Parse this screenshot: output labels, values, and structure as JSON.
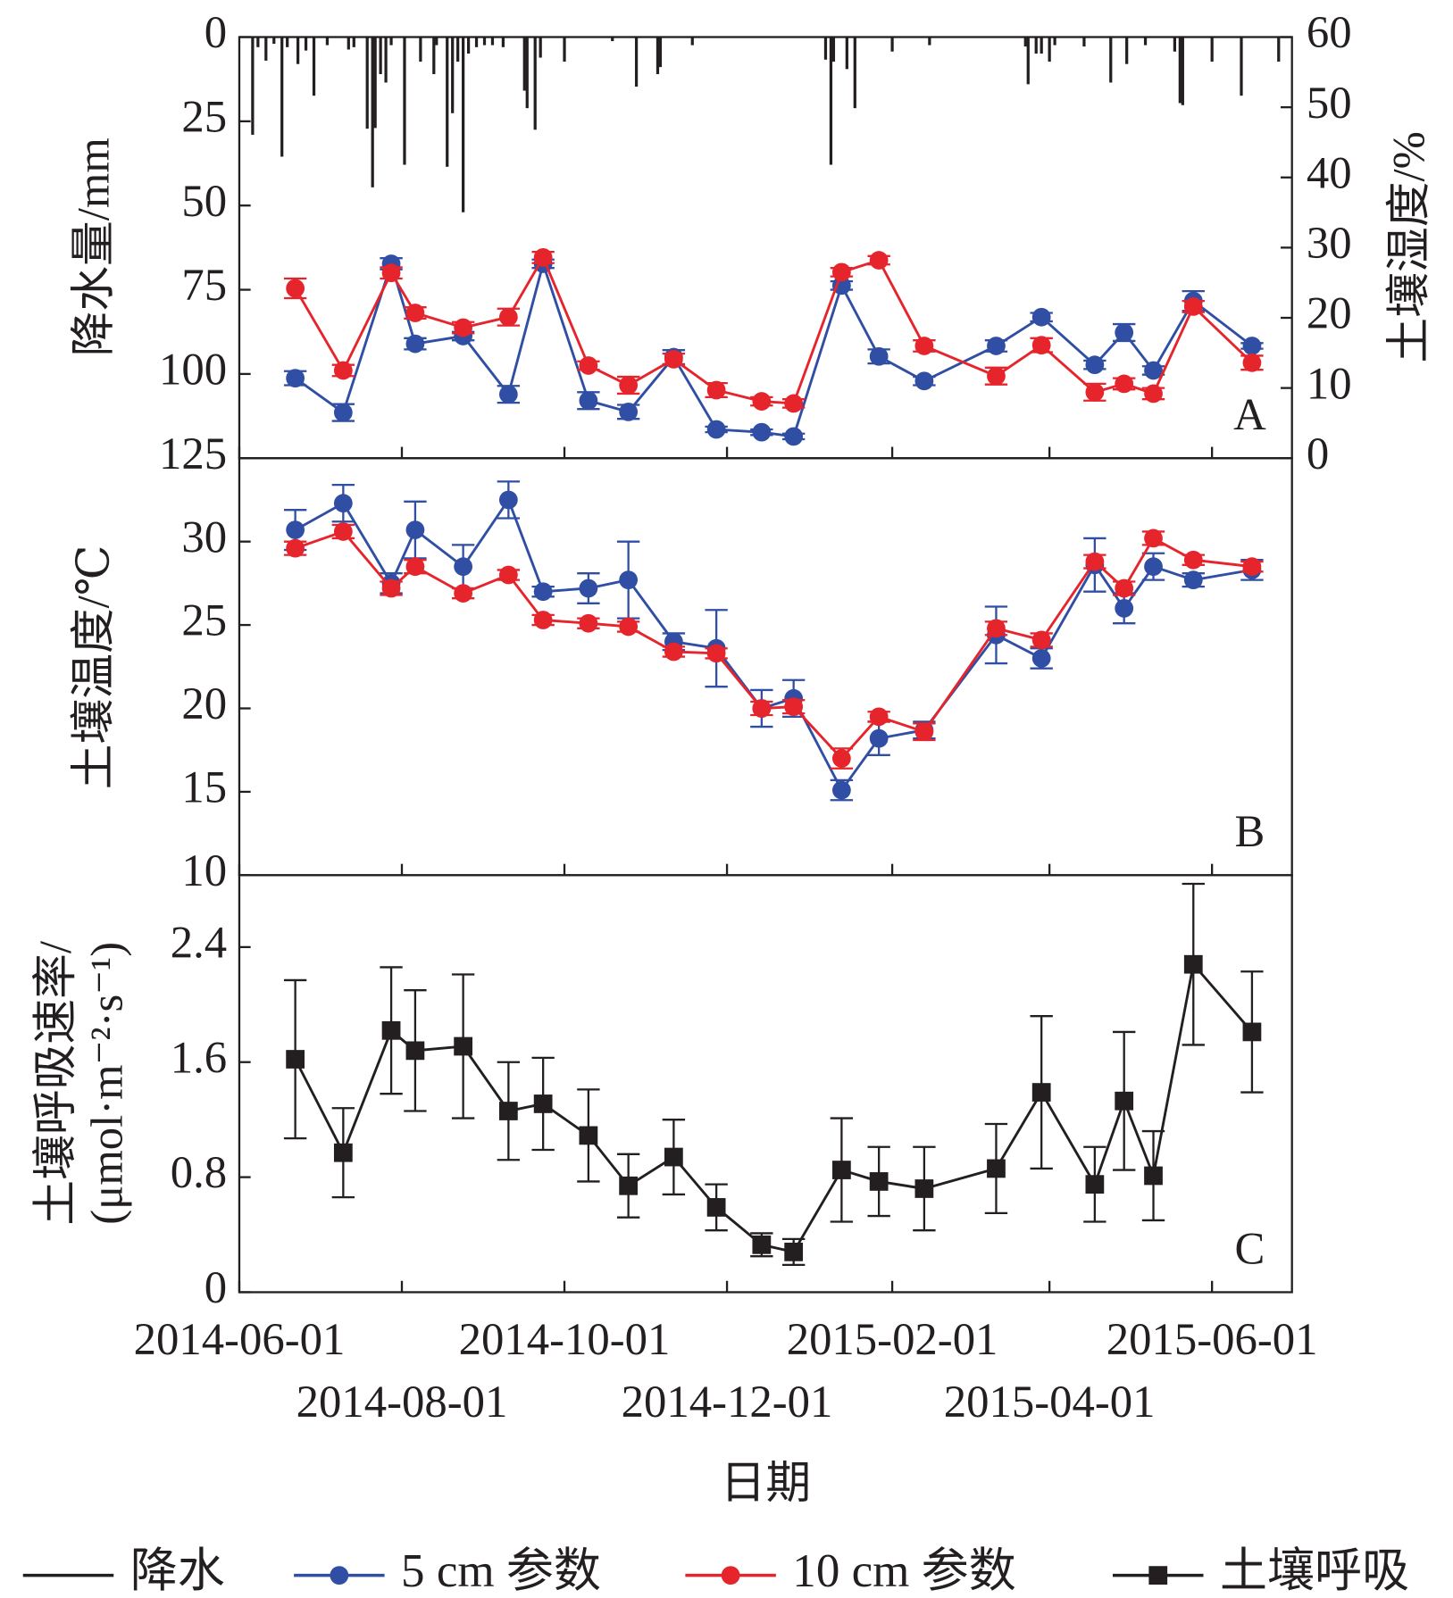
{
  "chart_data": [
    {
      "type": "combo",
      "panel_label": "A",
      "ylabel": "降水量/mm",
      "y2label": "土壤湿度/%",
      "ylim": [
        0,
        125
      ],
      "y_inverted": true,
      "yticks": [
        0,
        25,
        50,
        75,
        100,
        125
      ],
      "y2lim": [
        0,
        60
      ],
      "y2ticks": [
        0,
        10,
        20,
        30,
        40,
        50,
        60
      ],
      "xlim": [
        "2014-06-01",
        "2015-07-01"
      ],
      "x": [
        "2014-06-22",
        "2014-07-10",
        "2014-07-28",
        "2014-08-06",
        "2014-08-24",
        "2014-09-10",
        "2014-09-23",
        "2014-10-10",
        "2014-10-25",
        "2014-11-11",
        "2014-11-27",
        "2014-12-14",
        "2014-12-26",
        "2015-01-13",
        "2015-01-27",
        "2015-02-13",
        "2015-03-12",
        "2015-03-29",
        "2015-04-18",
        "2015-04-29",
        "2015-05-10",
        "2015-05-25",
        "2015-06-16"
      ],
      "series": [
        {
          "name": "降水",
          "type": "bar",
          "color": "#231f20",
          "x": [
            "2014-06-06",
            "2014-06-08",
            "2014-06-11",
            "2014-06-14",
            "2014-06-17",
            "2014-06-19",
            "2014-06-23",
            "2014-06-26",
            "2014-06-29",
            "2014-07-04",
            "2014-07-12",
            "2014-07-14",
            "2014-07-19",
            "2014-07-21",
            "2014-07-22",
            "2014-07-24",
            "2014-07-26",
            "2014-07-28",
            "2014-08-02",
            "2014-08-08",
            "2014-08-13",
            "2014-08-14",
            "2014-08-18",
            "2014-08-20",
            "2014-08-22",
            "2014-08-24",
            "2014-08-26",
            "2014-08-29",
            "2014-09-01",
            "2014-09-04",
            "2014-09-08",
            "2014-09-16",
            "2014-09-17",
            "2014-09-20",
            "2014-09-22",
            "2014-10-01",
            "2014-10-19",
            "2014-10-28",
            "2014-11-05",
            "2014-11-06",
            "2014-11-18",
            "2015-01-07",
            "2015-01-09",
            "2015-01-10",
            "2015-01-15",
            "2015-01-18",
            "2015-02-01",
            "2015-02-15",
            "2015-03-23",
            "2015-03-24",
            "2015-03-27",
            "2015-03-29",
            "2015-04-01",
            "2015-04-03",
            "2015-04-14",
            "2015-04-24",
            "2015-04-30",
            "2015-05-07",
            "2015-05-18",
            "2015-05-20",
            "2015-05-21",
            "2015-06-01",
            "2015-06-12",
            "2015-06-26"
          ],
          "values": [
            29,
            3,
            7,
            2,
            35.5,
            3,
            8,
            4,
            17.4,
            2.4,
            3.7,
            3,
            27.2,
            44.6,
            27,
            11,
            13.5,
            2.4,
            37.9,
            7.3,
            11,
            2.4,
            38.5,
            22.6,
            7.3,
            52,
            4.9,
            3,
            2.4,
            2.4,
            3,
            15.9,
            21.1,
            27.5,
            6.1,
            7.3,
            1.2,
            14.7,
            11,
            8.9,
            2.4,
            6.7,
            37.9,
            7.3,
            9.5,
            21.1,
            4.3,
            2.4,
            2.8,
            14,
            4.9,
            4.9,
            7.3,
            2.4,
            2.8,
            13.5,
            8,
            2.4,
            4.3,
            19.6,
            20.2,
            7.3,
            17.4,
            7.3
          ]
        },
        {
          "name": "5 cm 参数",
          "type": "line",
          "axis": "y2",
          "color": "#2f4ea4",
          "marker": "circle",
          "values": [
            11.4,
            6.5,
            27.7,
            16.3,
            17.4,
            9.1,
            27.7,
            8.2,
            6.6,
            14.4,
            4.1,
            3.7,
            3.1,
            24.6,
            14.5,
            11.0,
            16.0,
            20.1,
            13.3,
            17.9,
            12.5,
            22.4,
            16.0
          ],
          "errors": [
            1.0,
            1.2,
            0.8,
            0.8,
            0.6,
            1.2,
            0.6,
            1.2,
            1.0,
            1.0,
            0.4,
            0.4,
            0.4,
            0.6,
            1.0,
            0.6,
            0.8,
            0.6,
            0.6,
            1.2,
            0.6,
            1.4,
            0.4
          ]
        },
        {
          "name": "10 cm 参数",
          "type": "line",
          "axis": "y2",
          "color": "#e6242c",
          "marker": "circle",
          "values": [
            24.2,
            12.5,
            26.4,
            20.7,
            18.6,
            20.1,
            28.6,
            13.2,
            10.4,
            14.1,
            9.7,
            8.1,
            7.8,
            26.5,
            28.2,
            16.0,
            11.7,
            16.1,
            9.4,
            10.6,
            9.2,
            21.6,
            13.6
          ],
          "errors": [
            1.4,
            0.8,
            0.8,
            0.8,
            0.8,
            1.2,
            0.8,
            0.6,
            1.2,
            0.8,
            1.0,
            0.6,
            0.6,
            0.6,
            0.6,
            0.8,
            1.2,
            1.0,
            1.2,
            0.8,
            0.8,
            0.8,
            1.0
          ]
        }
      ]
    },
    {
      "type": "line",
      "panel_label": "B",
      "ylabel": "土壤温度/℃",
      "ylim": [
        10,
        35
      ],
      "yticks": [
        10,
        15,
        20,
        25,
        30
      ],
      "xlim": [
        "2014-06-01",
        "2015-07-01"
      ],
      "x": [
        "2014-06-22",
        "2014-07-10",
        "2014-07-28",
        "2014-08-06",
        "2014-08-24",
        "2014-09-10",
        "2014-09-23",
        "2014-10-10",
        "2014-10-25",
        "2014-11-11",
        "2014-11-27",
        "2014-12-14",
        "2014-12-26",
        "2015-01-13",
        "2015-01-27",
        "2015-02-13",
        "2015-03-12",
        "2015-03-29",
        "2015-04-18",
        "2015-04-29",
        "2015-05-10",
        "2015-05-25",
        "2015-06-16"
      ],
      "series": [
        {
          "color": "#2f4ea4",
          "marker": "circle",
          "values": [
            30.7,
            32.3,
            27.5,
            30.7,
            28.5,
            32.5,
            27.0,
            27.2,
            27.7,
            24.0,
            23.6,
            20.0,
            20.6,
            15.1,
            18.2,
            18.7,
            24.4,
            23.0,
            28.6,
            26.0,
            28.5,
            27.7,
            28.3
          ],
          "errors": [
            1.2,
            1.1,
            0.6,
            1.7,
            1.3,
            1.1,
            0.3,
            0.9,
            2.3,
            0.5,
            2.3,
            1.1,
            1.1,
            0.6,
            1.0,
            0.5,
            1.7,
            0.6,
            1.6,
            0.9,
            0.8,
            0.4,
            0.6
          ]
        },
        {
          "color": "#e6242c",
          "marker": "circle",
          "values": [
            29.6,
            30.6,
            27.2,
            28.5,
            26.9,
            28.0,
            25.3,
            25.1,
            24.9,
            23.4,
            23.3,
            20.0,
            20.1,
            17.0,
            19.5,
            18.6,
            24.8,
            24.1,
            28.8,
            27.2,
            30.2,
            28.9,
            28.5
          ],
          "errors": [
            0.4,
            0.4,
            0.4,
            0.4,
            0.3,
            0.3,
            0.3,
            0.3,
            0.3,
            0.3,
            0.3,
            0.4,
            0.4,
            0.6,
            0.3,
            0.5,
            0.4,
            0.4,
            0.4,
            0.4,
            0.4,
            0.3,
            0.3
          ]
        }
      ]
    },
    {
      "type": "line",
      "panel_label": "C",
      "ylabel": [
        "土壤呼吸速率/",
        "(μmol·m⁻²·s⁻¹)"
      ],
      "ylim": [
        0,
        2.9
      ],
      "yticks": [
        0,
        0.8,
        1.6,
        2.4
      ],
      "xlabel": "日期",
      "xlim": [
        "2014-06-01",
        "2015-07-01"
      ],
      "xticks": [
        "2014-06-01",
        "2014-08-01",
        "2014-10-01",
        "2014-12-01",
        "2015-02-01",
        "2015-04-01",
        "2015-06-01"
      ],
      "x": [
        "2014-06-22",
        "2014-07-10",
        "2014-07-28",
        "2014-08-06",
        "2014-08-24",
        "2014-09-10",
        "2014-09-23",
        "2014-10-10",
        "2014-10-25",
        "2014-11-11",
        "2014-11-27",
        "2014-12-14",
        "2014-12-26",
        "2015-01-13",
        "2015-01-27",
        "2015-02-13",
        "2015-03-12",
        "2015-03-29",
        "2015-04-18",
        "2015-04-29",
        "2015-05-10",
        "2015-05-25",
        "2015-06-16"
      ],
      "series": [
        {
          "name": "土壤呼吸",
          "color": "#231f20",
          "marker": "square",
          "values": [
            1.62,
            0.97,
            1.82,
            1.68,
            1.71,
            1.26,
            1.31,
            1.09,
            0.74,
            0.94,
            0.59,
            0.33,
            0.28,
            0.85,
            0.77,
            0.72,
            0.86,
            1.39,
            0.75,
            1.33,
            0.81,
            2.28,
            1.81
          ],
          "errors": [
            0.55,
            0.31,
            0.44,
            0.42,
            0.5,
            0.34,
            0.32,
            0.32,
            0.22,
            0.26,
            0.16,
            0.08,
            0.09,
            0.36,
            0.24,
            0.29,
            0.31,
            0.53,
            0.26,
            0.48,
            0.31,
            0.56,
            0.42
          ]
        }
      ]
    }
  ]
}
